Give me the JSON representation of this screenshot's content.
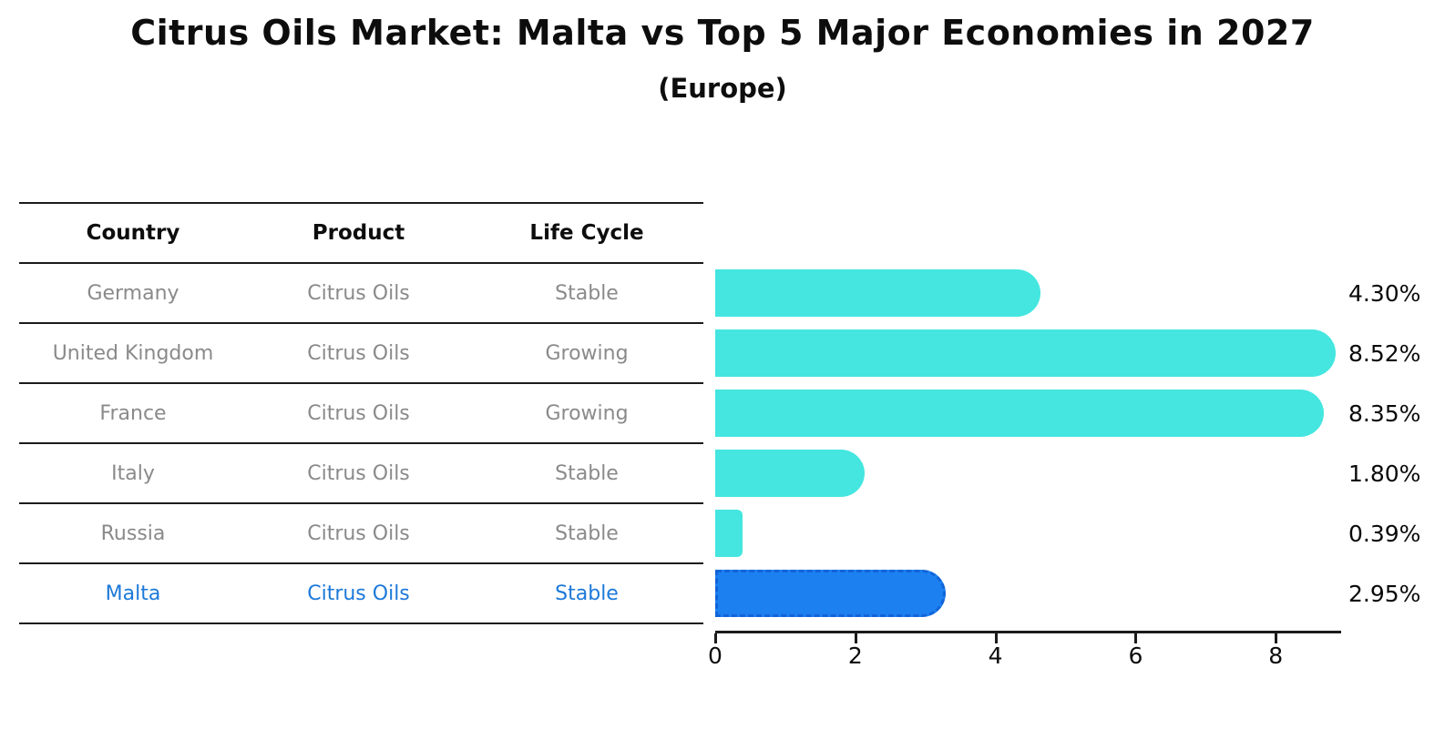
{
  "title": "Citrus Oils Market: Malta vs Top 5 Major Economies in 2027",
  "subtitle": "(Europe)",
  "table": {
    "headers": [
      "Country",
      "Product",
      "Life Cycle"
    ],
    "rows": [
      {
        "country": "Germany",
        "product": "Citrus Oils",
        "life_cycle": "Stable",
        "value_label": "4.30%",
        "highlight": false
      },
      {
        "country": "United Kingdom",
        "product": "Citrus Oils",
        "life_cycle": "Growing",
        "value_label": "8.52%",
        "highlight": false
      },
      {
        "country": "France",
        "product": "Citrus Oils",
        "life_cycle": "Growing",
        "value_label": "8.35%",
        "highlight": false
      },
      {
        "country": "Italy",
        "product": "Citrus Oils",
        "life_cycle": "Stable",
        "value_label": "1.80%",
        "highlight": false
      },
      {
        "country": "Russia",
        "product": "Citrus Oils",
        "life_cycle": "Stable",
        "value_label": "0.39%",
        "highlight": false
      },
      {
        "country": "Malta",
        "product": "Citrus Oils",
        "life_cycle": "Stable",
        "value_label": "2.95%",
        "highlight": true
      }
    ]
  },
  "chart_data": {
    "type": "bar",
    "orientation": "horizontal",
    "title": "Citrus Oils Market: Malta vs Top 5 Major Economies in 2027",
    "subtitle": "(Europe)",
    "categories": [
      "Germany",
      "United Kingdom",
      "France",
      "Italy",
      "Russia",
      "Malta"
    ],
    "values": [
      4.3,
      8.52,
      8.35,
      1.8,
      0.39,
      2.95
    ],
    "value_labels": [
      "4.30%",
      "8.52%",
      "8.35%",
      "1.80%",
      "0.39%",
      "2.95%"
    ],
    "unit": "%",
    "xlim": [
      0,
      8.92
    ],
    "xticks": [
      "0",
      "2",
      "4",
      "6",
      "8"
    ],
    "grid": false,
    "legend": false,
    "bar_color": "#45e6e0",
    "highlight_bar_color": "#1d80f0",
    "highlight_index": 5
  },
  "colors": {
    "bar_cyan": "#45e6e0",
    "bar_blue": "#1d80f0",
    "bar_blue_dash": "#1064d8",
    "row_text_gray": "#8a8a8a",
    "highlight_text_blue": "#1c79d9",
    "text_black": "#0d0d0d"
  }
}
